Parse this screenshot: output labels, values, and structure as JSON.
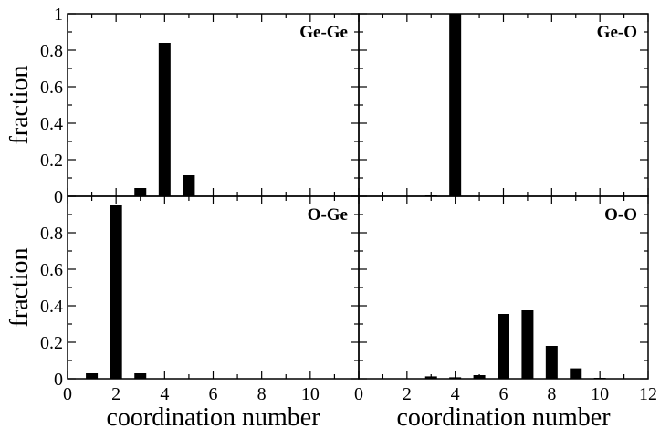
{
  "chart_data": [
    {
      "type": "bar",
      "panel": "top-left",
      "title": "Ge-Ge",
      "xlabel": "",
      "ylabel": "fraction",
      "xlim": [
        0,
        12
      ],
      "ylim": [
        0,
        1
      ],
      "xticks": [],
      "yticks": [
        "0",
        "0.2",
        "0.4",
        "0.6",
        "0.8",
        "1"
      ],
      "x": [
        3,
        4,
        5
      ],
      "values": [
        0.045,
        0.84,
        0.115
      ]
    },
    {
      "type": "bar",
      "panel": "top-right",
      "title": "Ge-O",
      "xlabel": "",
      "ylabel": "",
      "xlim": [
        0,
        12
      ],
      "ylim": [
        0,
        1
      ],
      "xticks": [],
      "yticks": [],
      "x": [
        3,
        4
      ],
      "values": [
        0.005,
        1.0
      ]
    },
    {
      "type": "bar",
      "panel": "bottom-left",
      "title": "O-Ge",
      "xlabel": "coordination number",
      "ylabel": "fraction",
      "xlim": [
        0,
        12
      ],
      "ylim": [
        0,
        1
      ],
      "xticks": [
        "0",
        "2",
        "4",
        "6",
        "8",
        "10"
      ],
      "yticks": [
        "0",
        "0.2",
        "0.4",
        "0.6",
        "0.8"
      ],
      "x": [
        1,
        2,
        3
      ],
      "values": [
        0.03,
        0.95,
        0.03
      ]
    },
    {
      "type": "bar",
      "panel": "bottom-right",
      "title": "O-O",
      "xlabel": "coordination number",
      "ylabel": "",
      "xlim": [
        0,
        12
      ],
      "ylim": [
        0,
        1
      ],
      "xticks": [
        "0",
        "2",
        "4",
        "6",
        "8",
        "10",
        "12"
      ],
      "yticks": [],
      "x": [
        3,
        4,
        5,
        6,
        7,
        8,
        9,
        10
      ],
      "values": [
        0.013,
        0.008,
        0.02,
        0.355,
        0.375,
        0.18,
        0.057,
        0.005
      ]
    }
  ]
}
